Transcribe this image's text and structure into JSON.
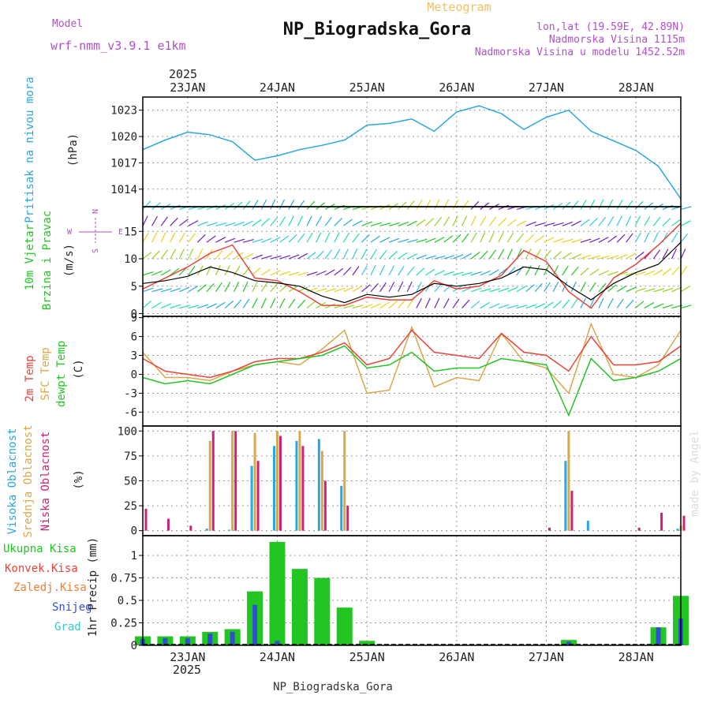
{
  "header": {
    "model_label": "Model",
    "model_name": "wrf-nmm_v3.9.1 e1km",
    "product": "Meteogram",
    "title": "NP_Biogradska_Gora",
    "lonlat": "lon,lat (19.59E, 42.89N)",
    "altitude": "Nadmorska Visina 1115m",
    "model_altitude": "Nadmorska Visina u modelu 1452.52m",
    "footer": "NP_Biogradska_Gora",
    "credit": "made by Angel"
  },
  "time_axis": {
    "year": "2025",
    "days": [
      "23JAN",
      "24JAN",
      "25JAN",
      "26JAN",
      "27JAN",
      "28JAN"
    ],
    "start": "2025-01-22 12:00",
    "end": "2025-01-28 12:00"
  },
  "colors": {
    "pressure": "#2aa7e0",
    "wind_label": "#22c522",
    "t2m": "#e8443a",
    "sfc": "#d9a84a",
    "dewpoint": "#22c522",
    "cloud_high": "#2aa7e0",
    "cloud_mid": "#d9a84a",
    "cloud_low": "#cc2277",
    "precip_total": "#22c522",
    "precip_conv": "#e8443a",
    "precip_frozen": "#f08030",
    "snow": "#3050d0",
    "hail": "#36c8c8",
    "purple": "#b050c8"
  },
  "chart_data": [
    {
      "type": "line",
      "name": "pressure",
      "ylabel_1": "Pritisak na nivou mora",
      "ylabel_2": "(hPa)",
      "yticks": [
        "1014",
        "1017",
        "1020",
        "1023"
      ],
      "ylim": [
        1012.0,
        1024.5
      ],
      "x_hours_from_start": [
        0,
        6,
        12,
        18,
        24,
        30,
        36,
        42,
        48,
        54,
        60,
        66,
        72,
        78,
        84,
        90,
        96,
        102,
        108,
        114,
        120,
        126,
        132,
        138,
        144
      ],
      "values": [
        1018.5,
        1019.6,
        1020.5,
        1020.2,
        1019.4,
        1017.3,
        1017.8,
        1018.5,
        1019.0,
        1019.6,
        1021.3,
        1021.5,
        1022.0,
        1020.6,
        1022.8,
        1023.5,
        1022.6,
        1020.8,
        1022.2,
        1023.0,
        1020.6,
        1019.5,
        1018.4,
        1016.6,
        1012.9
      ]
    },
    {
      "type": "line",
      "name": "wind",
      "ylabel_1": "10m Vjetar",
      "ylabel_1b": "Brzina i Pravac",
      "ylabel_2": "(m/s)",
      "compass": [
        "N",
        "E",
        "S",
        "W"
      ],
      "yticks": [
        "0",
        "5",
        "10",
        "15"
      ],
      "ylim": [
        -0.5,
        19.5
      ],
      "series": [
        {
          "name": "mean",
          "values": [
            5.5,
            6.0,
            6.8,
            8.5,
            7.5,
            6.0,
            5.6,
            5.0,
            3.2,
            2.0,
            3.5,
            3.0,
            3.5,
            5.5,
            5.0,
            5.5,
            6.5,
            8.5,
            8.0,
            5.0,
            2.5,
            5.5,
            7.5,
            9.0,
            13.0
          ]
        },
        {
          "name": "gust",
          "values": [
            4.5,
            6.5,
            8.5,
            11.0,
            12.5,
            6.5,
            6.0,
            4.0,
            1.5,
            1.5,
            3.0,
            2.5,
            2.5,
            6.0,
            4.5,
            5.0,
            7.0,
            11.5,
            9.5,
            4.0,
            1.0,
            6.5,
            9.0,
            12.5,
            16.5
          ]
        }
      ]
    },
    {
      "type": "line",
      "name": "temperature",
      "ylabel_1": "2m Temp",
      "ylabel_1b": "SFC Temp",
      "ylabel_1c": "dewpt Temp",
      "ylabel_2": "(C)",
      "yticks": [
        "-6",
        "-3",
        "0",
        "3",
        "6",
        "9"
      ],
      "ylim": [
        -8.2,
        9.2
      ],
      "series": [
        {
          "name": "t2m",
          "values": [
            2.5,
            0.5,
            0.0,
            -0.5,
            0.5,
            2.0,
            2.5,
            2.5,
            3.5,
            5.0,
            1.5,
            2.5,
            7.0,
            3.5,
            3.0,
            2.5,
            6.5,
            3.5,
            3.0,
            0.5,
            6.0,
            1.5,
            1.5,
            2.0,
            4.5
          ]
        },
        {
          "name": "sfc",
          "values": [
            3.5,
            -0.5,
            -0.5,
            -1.0,
            0.5,
            1.5,
            2.0,
            1.5,
            4.0,
            7.0,
            -3.0,
            -2.5,
            7.5,
            -2.0,
            -0.5,
            -1.0,
            6.5,
            2.0,
            1.0,
            -3.0,
            8.0,
            0.0,
            -0.5,
            1.5,
            7.0
          ]
        },
        {
          "name": "dewpoint",
          "values": [
            -0.5,
            -1.5,
            -1.0,
            -1.5,
            0.0,
            1.5,
            2.0,
            2.5,
            3.0,
            4.5,
            1.0,
            1.5,
            3.5,
            0.5,
            1.0,
            1.0,
            2.5,
            2.0,
            1.5,
            -6.5,
            2.5,
            -1.0,
            -0.5,
            0.5,
            2.5
          ]
        }
      ]
    },
    {
      "type": "bar",
      "name": "clouds",
      "ylabel_1": "Visoka Oblacnost",
      "ylabel_1b": "Srednja Oblacnost",
      "ylabel_1c": "Niska Oblacnost",
      "ylabel_2": "(%)",
      "yticks": [
        "0",
        "25",
        "50",
        "75",
        "100"
      ],
      "ylim": [
        -5,
        105
      ],
      "series": [
        {
          "name": "high",
          "values": [
            0,
            0,
            0,
            2,
            1,
            65,
            85,
            90,
            92,
            45,
            0,
            0,
            0,
            0,
            0,
            0,
            0,
            0,
            0,
            70,
            10,
            0,
            0,
            0,
            2
          ]
        },
        {
          "name": "mid",
          "values": [
            0,
            0,
            0,
            90,
            100,
            98,
            100,
            100,
            80,
            100,
            0,
            0,
            0,
            0,
            0,
            0,
            0,
            0,
            0,
            100,
            0,
            0,
            0,
            0,
            5
          ]
        },
        {
          "name": "low",
          "values": [
            22,
            12,
            5,
            100,
            100,
            70,
            95,
            85,
            50,
            25,
            0,
            0,
            0,
            0,
            0,
            0,
            0,
            0,
            3,
            40,
            0,
            0,
            3,
            18,
            15
          ]
        }
      ]
    },
    {
      "type": "bar",
      "name": "precipitation",
      "ylabel_1": "Ukupna Kisa",
      "ylabel_1b": "Konvek.Kisa",
      "ylabel_1c": "Zaledj.Kisa",
      "ylabel_1d": "Snijeg",
      "ylabel_1e": "Grad",
      "ylabel_2": "1hr Precip (mm)",
      "yticks": [
        "0",
        "0.25",
        "0.5",
        "0.75",
        "1"
      ],
      "ylim": [
        0,
        1.22
      ],
      "series": [
        {
          "name": "total",
          "values": [
            0.1,
            0.1,
            0.1,
            0.15,
            0.18,
            0.6,
            1.15,
            0.85,
            0.75,
            0.42,
            0.05,
            0,
            0,
            0,
            0,
            0,
            0,
            0,
            0,
            0.06,
            0.01,
            0,
            0,
            0.2,
            0.55
          ]
        },
        {
          "name": "snow",
          "values": [
            0.07,
            0.08,
            0.08,
            0.13,
            0.15,
            0.45,
            0.05,
            0,
            0,
            0,
            0,
            0,
            0,
            0,
            0,
            0,
            0,
            0,
            0,
            0.04,
            0,
            0,
            0,
            0.2,
            0.3
          ]
        }
      ]
    }
  ]
}
